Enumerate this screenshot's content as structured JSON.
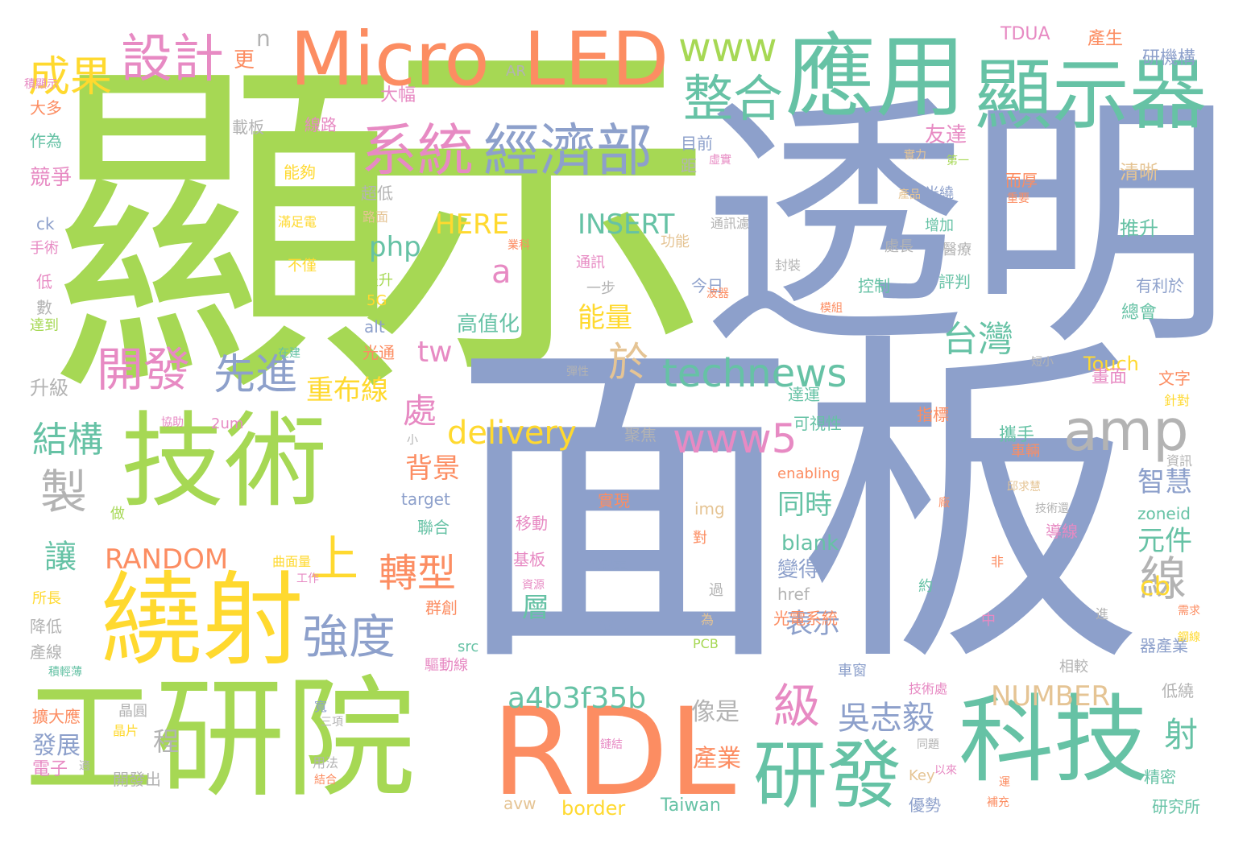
{
  "palette": {
    "green": "#a6d854",
    "blue": "#8da0cb",
    "teal": "#66c2a5",
    "orange": "#fc8d62",
    "yellow": "#ffd92f",
    "pink": "#e78ac3",
    "gray": "#b3b3b3",
    "tan": "#e5c494"
  },
  "words": [
    "顯",
    "示",
    "透明",
    "面板",
    "Micro",
    "LED",
    "應用",
    "顯示器",
    "技術",
    "繞射",
    "工研院",
    "RDL",
    "科技",
    "研發",
    "設計",
    "成果",
    "n",
    "更",
    "www",
    "整合",
    "系統",
    "經濟部",
    "amp",
    "開發",
    "先進",
    "於",
    "technews",
    "台灣",
    "處",
    "www5",
    "delivery",
    "結構",
    "製",
    "線",
    "上",
    "轉型",
    "強度",
    "級",
    "吳志毅",
    "射",
    "a4b3f35b",
    "NUMBER",
    "RANDOM",
    "讓",
    "HERE",
    "INSERT",
    "php",
    "a",
    "tw",
    "重布線",
    "背景",
    "能量",
    "同時",
    "智慧",
    "元件",
    "cb",
    "層",
    "表示",
    "像是",
    "產業",
    "發展",
    "程",
    "TDUA",
    "產生",
    "研機構",
    "AR",
    "積顯示",
    "大幅",
    "友達",
    "大多",
    "作為",
    "載板",
    "線路",
    "目前",
    "距",
    "虛實",
    "實力",
    "第一",
    "能夠",
    "競爭",
    "超低",
    "而厚",
    "清晰",
    "光繞",
    "產品",
    "重要",
    "滿足電",
    "路面",
    "通訊濾",
    "增加",
    "手術",
    "業科",
    "功能",
    "處長",
    "醫療",
    "推升",
    "ck",
    "不僅",
    "通訊",
    "封裝",
    "低",
    "提升",
    "今日",
    "控制",
    "評判",
    "有利於",
    "數",
    "5G",
    "一步",
    "模組",
    "波器",
    "總會",
    "達到",
    "alt",
    "高值化",
    "在建",
    "光通",
    "短小",
    "彈性",
    "Touch",
    "文字",
    "升級",
    "畫面",
    "針對",
    "達運",
    "協助",
    "2um",
    "可視性",
    "指標",
    "小",
    "聚焦",
    "攜手",
    "車輛",
    "enabling",
    "資訊",
    "target",
    "實現",
    "邱求慧",
    "技術還",
    "廠",
    "做",
    "聯合",
    "移動",
    "img",
    "導線",
    "zoneid",
    "對",
    "基板",
    "曲面量",
    "工作",
    "blank",
    "非",
    "所長",
    "資源",
    "等產",
    "變得",
    "href",
    "過",
    "約",
    "群創",
    "降低",
    "中",
    "為",
    "光電系統",
    "進",
    "需求",
    "src",
    "發表",
    "PCB",
    "器產業",
    "鋼線",
    "產線",
    "驅動線",
    "積輕薄",
    "車窗",
    "相較",
    "技術處",
    "晶圓",
    "寬",
    "三項",
    "低繞",
    "擴大應",
    "晶片",
    "同題",
    "鏈結",
    "電子",
    "適",
    "用法",
    "開發出",
    "結合",
    "Key",
    "以來",
    "運",
    "精密",
    "avw",
    "border",
    "Taiwan",
    "優勢",
    "補充",
    "研究所"
  ]
}
